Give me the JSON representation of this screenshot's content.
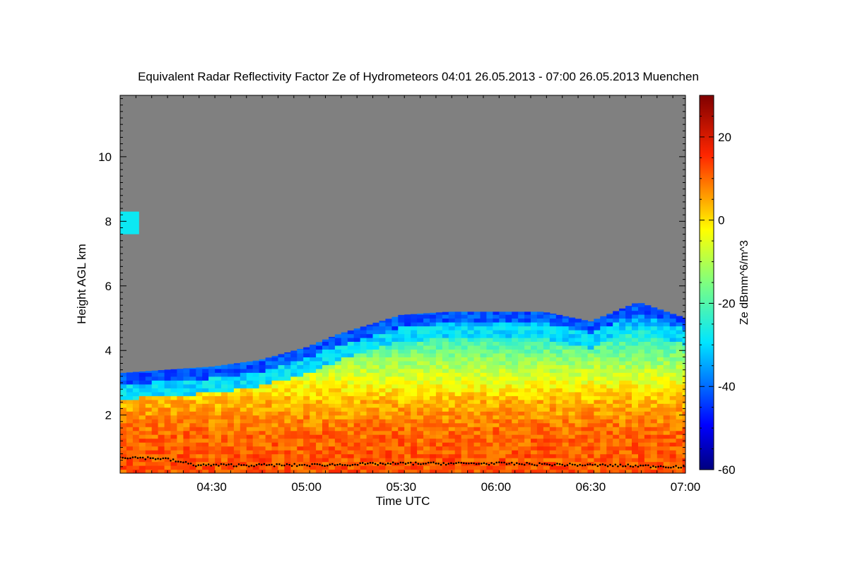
{
  "chart_data": {
    "type": "heatmap",
    "title": "Equivalent Radar Reflectivity Factor Ze of Hydrometeors   04:01 26.05.2013 - 07:00 26.05.2013 Muenchen",
    "xlabel": "Time UTC",
    "ylabel": "Height AGL km",
    "x_range": [
      "04:01",
      "07:00"
    ],
    "y_range_km": [
      0.2,
      11.9
    ],
    "x_ticks": [
      "04:30",
      "05:00",
      "05:30",
      "06:00",
      "06:30",
      "07:00"
    ],
    "y_ticks": [
      "2",
      "4",
      "6",
      "8",
      "10"
    ],
    "colorbar": {
      "label": "Ze dBmm^6/m^3",
      "range": [
        -60,
        30
      ],
      "ticks": [
        "-60",
        "-40",
        "-20",
        "0",
        "20"
      ],
      "colormap": "jet"
    },
    "background_color": "#808080",
    "echo_top_km": [
      {
        "time": "04:01",
        "top": 3.3
      },
      {
        "time": "04:15",
        "top": 3.4
      },
      {
        "time": "04:30",
        "top": 3.5
      },
      {
        "time": "04:45",
        "top": 3.7
      },
      {
        "time": "05:00",
        "top": 4.1
      },
      {
        "time": "05:10",
        "top": 4.5
      },
      {
        "time": "05:20",
        "top": 4.8
      },
      {
        "time": "05:30",
        "top": 5.1
      },
      {
        "time": "05:45",
        "top": 5.2
      },
      {
        "time": "06:00",
        "top": 5.2
      },
      {
        "time": "06:15",
        "top": 5.2
      },
      {
        "time": "06:30",
        "top": 4.9
      },
      {
        "time": "06:45",
        "top": 5.5
      },
      {
        "time": "07:00",
        "top": 5.0
      }
    ],
    "reflectivity_profile_dbz": [
      {
        "height": 0.5,
        "ze": 12
      },
      {
        "height": 1.5,
        "ze": 10
      },
      {
        "height": 2.5,
        "ze": 3
      },
      {
        "height": 3.5,
        "ze": -10
      },
      {
        "height": 4.5,
        "ze": -25
      },
      {
        "height": 5.2,
        "ze": -40
      }
    ],
    "upper_cloud_patch": {
      "time_range": [
        "04:01",
        "04:07"
      ],
      "height_range_km": [
        7.6,
        8.3
      ],
      "ze": -28
    },
    "cloud_base_height_km": [
      {
        "time": "04:01",
        "base": 0.7
      },
      {
        "time": "04:15",
        "base": 0.65
      },
      {
        "time": "04:25",
        "base": 0.45
      },
      {
        "time": "05:00",
        "base": 0.45
      },
      {
        "time": "05:30",
        "base": 0.5
      },
      {
        "time": "06:00",
        "base": 0.5
      },
      {
        "time": "06:30",
        "base": 0.45
      },
      {
        "time": "07:00",
        "base": 0.4
      }
    ]
  }
}
